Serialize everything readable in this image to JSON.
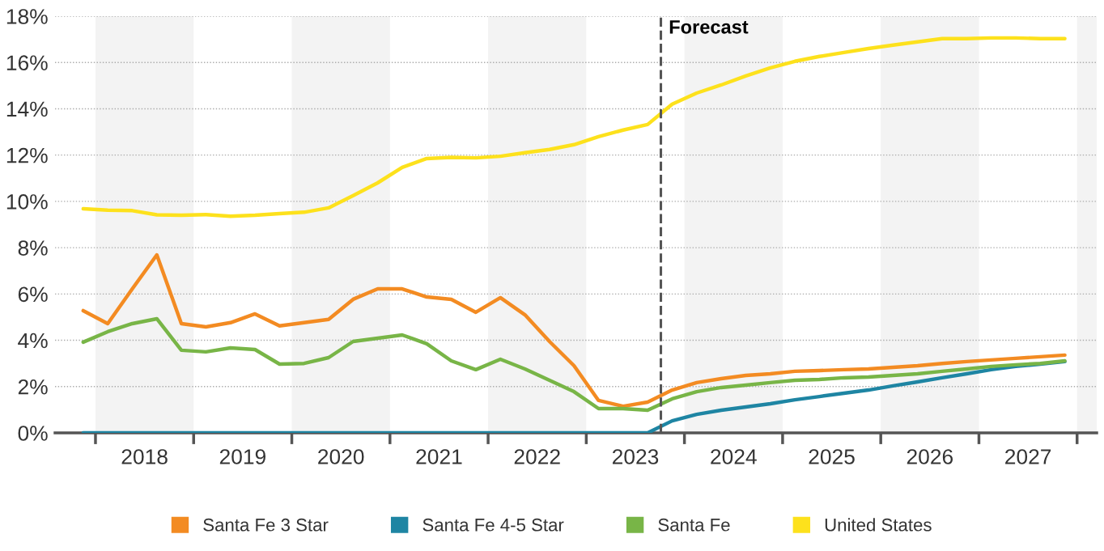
{
  "chart_data": {
    "type": "line",
    "x": [
      2017.875,
      2018.125,
      2018.375,
      2018.625,
      2018.875,
      2019.125,
      2019.375,
      2019.625,
      2019.875,
      2020.125,
      2020.375,
      2020.625,
      2020.875,
      2021.125,
      2021.375,
      2021.625,
      2021.875,
      2022.125,
      2022.375,
      2022.625,
      2022.875,
      2023.125,
      2023.375,
      2023.625,
      2023.875,
      2024.125,
      2024.375,
      2024.625,
      2024.875,
      2025.125,
      2025.375,
      2025.625,
      2025.875,
      2026.125,
      2026.375,
      2026.625,
      2026.875,
      2027.125,
      2027.375,
      2027.625,
      2027.875
    ],
    "series": [
      {
        "name": "Santa Fe 3 Star",
        "color": "#f38b22",
        "values": [
          5.28,
          4.72,
          6.22,
          7.69,
          4.72,
          4.58,
          4.76,
          5.14,
          4.62,
          4.76,
          4.9,
          5.77,
          6.22,
          6.22,
          5.87,
          5.77,
          5.21,
          5.84,
          5.1,
          3.95,
          2.9,
          1.4,
          1.15,
          1.33,
          1.85,
          2.17,
          2.34,
          2.48,
          2.55,
          2.66,
          2.69,
          2.73,
          2.76,
          2.83,
          2.9,
          3.0,
          3.08,
          3.15,
          3.22,
          3.29,
          3.36
        ]
      },
      {
        "name": "Santa Fe 4-5 Star",
        "color": "#1e85a3",
        "values": [
          0,
          0,
          0,
          0,
          0,
          0,
          0,
          0,
          0,
          0,
          0,
          0,
          0,
          0,
          0,
          0,
          0,
          0,
          0,
          0,
          0,
          0,
          0,
          0,
          0.52,
          0.8,
          0.98,
          1.12,
          1.26,
          1.43,
          1.57,
          1.71,
          1.85,
          2.03,
          2.2,
          2.38,
          2.55,
          2.73,
          2.87,
          2.97,
          3.08
        ]
      },
      {
        "name": "Santa Fe",
        "color": "#78b547",
        "values": [
          3.92,
          4.37,
          4.72,
          4.93,
          3.57,
          3.5,
          3.67,
          3.6,
          2.97,
          3.0,
          3.25,
          3.95,
          4.09,
          4.23,
          3.85,
          3.11,
          2.73,
          3.18,
          2.76,
          2.27,
          1.78,
          1.05,
          1.05,
          0.98,
          1.47,
          1.78,
          1.96,
          2.06,
          2.17,
          2.27,
          2.31,
          2.38,
          2.41,
          2.48,
          2.55,
          2.66,
          2.76,
          2.87,
          2.94,
          3.0,
          3.11
        ]
      },
      {
        "name": "United States",
        "color": "#fde11c",
        "values": [
          9.68,
          9.62,
          9.6,
          9.42,
          9.4,
          9.43,
          9.36,
          9.4,
          9.47,
          9.53,
          9.72,
          10.25,
          10.8,
          11.47,
          11.85,
          11.9,
          11.88,
          11.95,
          12.1,
          12.24,
          12.45,
          12.8,
          13.08,
          13.32,
          14.2,
          14.68,
          15.03,
          15.42,
          15.77,
          16.05,
          16.26,
          16.43,
          16.6,
          16.75,
          16.89,
          17.03,
          17.03,
          17.06,
          17.06,
          17.03,
          17.03
        ]
      }
    ],
    "xlim": [
      2017.588,
      2028.2
    ],
    "xticks": [
      {
        "value": 2018,
        "label": null
      },
      {
        "value": 2018.5,
        "label": "2018"
      },
      {
        "value": 2019,
        "label": null
      },
      {
        "value": 2019.5,
        "label": "2019"
      },
      {
        "value": 2020,
        "label": null
      },
      {
        "value": 2020.5,
        "label": "2020"
      },
      {
        "value": 2021,
        "label": null
      },
      {
        "value": 2021.5,
        "label": "2021"
      },
      {
        "value": 2022,
        "label": null
      },
      {
        "value": 2022.5,
        "label": "2022"
      },
      {
        "value": 2023,
        "label": null
      },
      {
        "value": 2023.5,
        "label": "2023"
      },
      {
        "value": 2024,
        "label": null
      },
      {
        "value": 2024.5,
        "label": "2024"
      },
      {
        "value": 2025,
        "label": null
      },
      {
        "value": 2025.5,
        "label": "2025"
      },
      {
        "value": 2026,
        "label": null
      },
      {
        "value": 2026.5,
        "label": "2026"
      },
      {
        "value": 2027,
        "label": null
      },
      {
        "value": 2027.5,
        "label": "2027"
      },
      {
        "value": 2028,
        "label": null
      }
    ],
    "ylim": [
      0,
      18
    ],
    "yticks": [
      {
        "value": 0,
        "label": "0%"
      },
      {
        "value": 2,
        "label": "2%"
      },
      {
        "value": 4,
        "label": "4%"
      },
      {
        "value": 6,
        "label": "6%"
      },
      {
        "value": 8,
        "label": "8%"
      },
      {
        "value": 10,
        "label": "10%"
      },
      {
        "value": 12,
        "label": "12%"
      },
      {
        "value": 14,
        "label": "14%"
      },
      {
        "value": 16,
        "label": "16%"
      },
      {
        "value": 18,
        "label": "18%"
      }
    ],
    "bands": [
      {
        "axis": "x",
        "from": 2018,
        "to": 2019,
        "color": "#f3f3f3"
      },
      {
        "axis": "x",
        "from": 2020,
        "to": 2021,
        "color": "#f3f3f3"
      },
      {
        "axis": "x",
        "from": 2022,
        "to": 2023,
        "color": "#f3f3f3"
      },
      {
        "axis": "x",
        "from": 2024,
        "to": 2025,
        "color": "#f3f3f3"
      },
      {
        "axis": "x",
        "from": 2026,
        "to": 2027,
        "color": "#f3f3f3"
      },
      {
        "axis": "x",
        "from": 2028,
        "to": 2028.2,
        "color": "#f3f3f3"
      }
    ],
    "ref_lines": [
      {
        "axis": "x",
        "value": 2023.76,
        "label": "Forecast",
        "color": "#555555",
        "line_style": "dashed"
      }
    ],
    "grid": "y",
    "legend": "bottom",
    "marker": "none",
    "line_style": "solid"
  }
}
